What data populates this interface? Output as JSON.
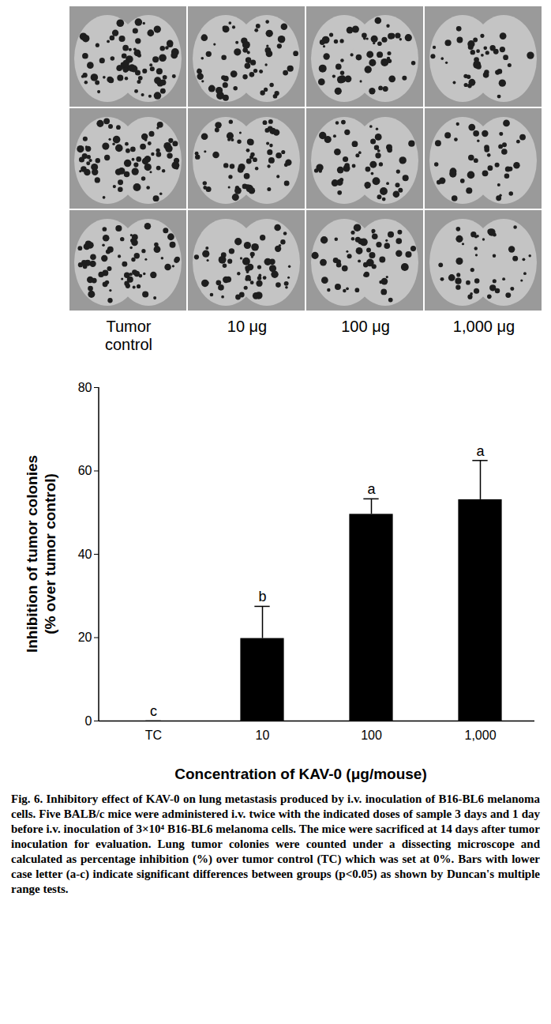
{
  "photo_labels": [
    "Tumor\ncontrol",
    "10 μg",
    "100 μg",
    "1,000 μg"
  ],
  "chart_data": {
    "type": "bar",
    "categories": [
      "TC",
      "10",
      "100",
      "1,000"
    ],
    "values": [
      0,
      19.8,
      49.6,
      53.1
    ],
    "errors": [
      0,
      7.7,
      3.7,
      9.4
    ],
    "significance_letters": [
      "c",
      "b",
      "a",
      "a"
    ],
    "color": "#000000",
    "xlabel": "Concentration of KAV-0 (μg/mouse)",
    "ylabel": "Inhibition of tumor colonies\n(% over tumor control)",
    "ylim": [
      0,
      80
    ],
    "yticks": [
      0,
      20,
      40,
      60,
      80
    ]
  },
  "caption": {
    "title": "Fig. 6. Inhibitory effect of KAV-0 on lung metastasis produced by i.v. inoculation of B16-BL6 melanoma cells.",
    "text": "Five BALB/c mice were administered i.v. twice with the indicated doses of sample 3 days and 1 day before i.v. inoculation of 3×10⁴ B16-BL6 melanoma cells. The mice were sacrificed at 14 days after tumor inoculation for evaluation. Lung tumor colonies were counted under a dissecting microscope and calculated as percentage inhibition (%) over tumor control (TC) which was set at 0%. Bars with lower case letter (a-c) indicate significant differences between groups (p<0.05) as shown by Duncan's multiple range tests."
  }
}
